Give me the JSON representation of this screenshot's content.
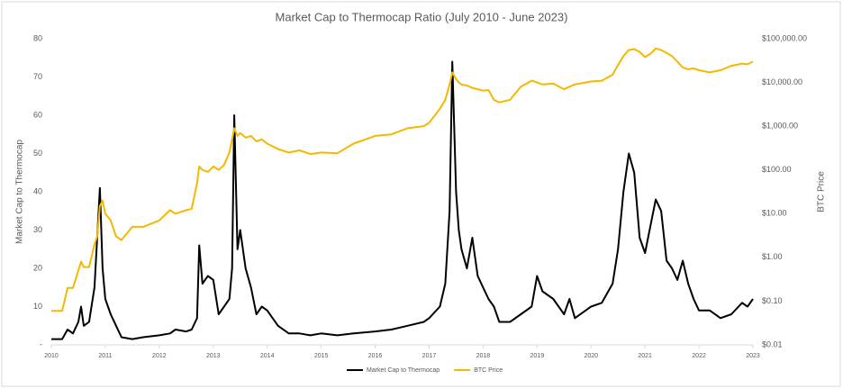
{
  "chart_data": {
    "type": "line",
    "title": "Market Cap to Thermocap Ratio (July 2010 - June 2023)",
    "y_label": "Market Cap to Thermocap",
    "y2_label": "BTC Price",
    "x": [
      2010.0,
      2010.2,
      2010.3,
      2010.4,
      2010.5,
      2010.55,
      2010.6,
      2010.7,
      2010.8,
      2010.85,
      2010.9,
      2010.95,
      2011.0,
      2011.1,
      2011.2,
      2011.3,
      2011.5,
      2011.7,
      2012.0,
      2012.2,
      2012.3,
      2012.5,
      2012.6,
      2012.7,
      2012.74,
      2012.8,
      2012.9,
      2013.0,
      2013.1,
      2013.2,
      2013.3,
      2013.35,
      2013.39,
      2013.45,
      2013.5,
      2013.6,
      2013.7,
      2013.8,
      2013.9,
      2014.0,
      2014.2,
      2014.4,
      2014.6,
      2014.8,
      2015.0,
      2015.3,
      2015.6,
      2016.0,
      2016.3,
      2016.6,
      2016.9,
      2017.0,
      2017.2,
      2017.3,
      2017.38,
      2017.43,
      2017.5,
      2017.55,
      2017.6,
      2017.7,
      2017.8,
      2017.9,
      2018.0,
      2018.1,
      2018.2,
      2018.3,
      2018.5,
      2018.7,
      2018.9,
      2019.0,
      2019.1,
      2019.3,
      2019.5,
      2019.6,
      2019.7,
      2019.9,
      2020.0,
      2020.2,
      2020.4,
      2020.5,
      2020.6,
      2020.7,
      2020.8,
      2020.9,
      2021.0,
      2021.1,
      2021.2,
      2021.3,
      2021.4,
      2021.5,
      2021.6,
      2021.7,
      2021.8,
      2021.9,
      2022.0,
      2022.2,
      2022.4,
      2022.6,
      2022.8,
      2022.9,
      2023.0
    ],
    "series": [
      {
        "name": "Market Cap to Thermocap",
        "color": "#000000",
        "values": [
          1.5,
          1.5,
          4,
          3,
          6,
          10,
          5,
          6,
          15,
          28,
          41,
          20,
          12,
          8,
          5,
          2,
          1.5,
          2,
          2.5,
          3,
          4,
          3.5,
          4,
          7,
          26,
          16,
          18,
          17,
          8,
          10,
          12,
          20,
          60,
          25,
          30,
          20,
          15,
          8,
          10,
          9,
          5,
          3,
          3,
          2.5,
          3,
          2.5,
          3,
          3.5,
          4,
          5,
          6,
          7,
          10,
          16,
          35,
          74,
          40,
          30,
          25,
          20,
          28,
          18,
          15,
          12,
          10,
          6,
          6,
          8,
          10,
          18,
          14,
          12,
          8,
          12,
          7,
          9,
          10,
          11,
          16,
          25,
          40,
          50,
          45,
          28,
          24,
          31,
          38,
          35,
          22,
          20,
          17,
          22,
          16,
          12,
          9,
          9,
          7,
          8,
          11,
          10,
          12
        ]
      },
      {
        "name": "BTC Price",
        "color": "#f5b800",
        "axis": "y2",
        "values": [
          0.06,
          0.06,
          0.2,
          0.2,
          0.5,
          0.8,
          0.6,
          0.6,
          2,
          3,
          15,
          20,
          10,
          7,
          3,
          2.5,
          5,
          5,
          7,
          12,
          10,
          12,
          13,
          50,
          120,
          100,
          90,
          120,
          100,
          130,
          250,
          500,
          900,
          600,
          700,
          550,
          600,
          450,
          500,
          400,
          300,
          250,
          280,
          230,
          250,
          240,
          400,
          600,
          650,
          900,
          1000,
          1200,
          2500,
          4000,
          9000,
          17000,
          12000,
          10000,
          9000,
          8500,
          7500,
          7000,
          6500,
          6700,
          4000,
          3500,
          4000,
          8000,
          11000,
          10000,
          9000,
          9500,
          7000,
          8000,
          9000,
          10000,
          10500,
          11000,
          15000,
          25000,
          40000,
          55000,
          58000,
          50000,
          38000,
          45000,
          60000,
          55000,
          47000,
          40000,
          30000,
          22000,
          20000,
          21000,
          19000,
          17000,
          19000,
          24000,
          27000,
          26000,
          30000
        ]
      }
    ],
    "xlim": [
      2010,
      2023
    ],
    "xticks": [
      2010,
      2011,
      2012,
      2013,
      2014,
      2015,
      2016,
      2017,
      2018,
      2019,
      2020,
      2021,
      2022,
      2023
    ],
    "ylim": [
      0,
      80
    ],
    "yticks": [
      {
        "value": 0,
        "label": "-"
      },
      10,
      20,
      30,
      40,
      50,
      60,
      70,
      80
    ],
    "y2lim": [
      0.01,
      100000
    ],
    "y2log": true,
    "y2ticks": [
      {
        "value": 0.01,
        "label": "$0.01"
      },
      {
        "value": 0.1,
        "label": "$0.10"
      },
      {
        "value": 1,
        "label": "$1.00"
      },
      {
        "value": 10,
        "label": "$10.00"
      },
      {
        "value": 100,
        "label": "$100.00"
      },
      {
        "value": 1000,
        "label": "$1,000.00"
      },
      {
        "value": 10000,
        "label": "$10,000.00"
      },
      {
        "value": 100000,
        "label": "$100,000.00"
      }
    ],
    "legend": "bottom"
  }
}
